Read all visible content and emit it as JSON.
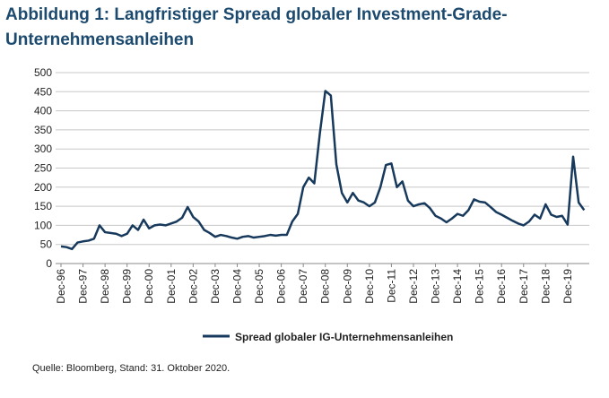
{
  "chart_data": {
    "type": "line",
    "title": "Abbildung 1: Langfristiger Spread globaler Investment-Grade-Unternehmensanleihen",
    "source": "Quelle: Bloomberg, Stand: 31. Oktober 2020.",
    "categories": [
      "Dec-96",
      null,
      null,
      null,
      "Dec-97",
      null,
      null,
      null,
      "Dec-98",
      null,
      null,
      null,
      "Dec-99",
      null,
      null,
      null,
      "Dec-00",
      null,
      null,
      null,
      "Dec-01",
      null,
      null,
      null,
      "Dec-02",
      null,
      null,
      null,
      "Dec-03",
      null,
      null,
      null,
      "Dec-04",
      null,
      null,
      null,
      "Dec-05",
      null,
      null,
      null,
      "Dec-06",
      null,
      null,
      null,
      "Dec-07",
      null,
      null,
      null,
      "Dec-08",
      null,
      null,
      null,
      "Dec-09",
      null,
      null,
      null,
      "Dec-10",
      null,
      null,
      null,
      "Dec-11",
      null,
      null,
      null,
      "Dec-12",
      null,
      null,
      null,
      "Dec-13",
      null,
      null,
      null,
      "Dec-14",
      null,
      null,
      null,
      "Dec-15",
      null,
      null,
      null,
      "Dec-16",
      null,
      null,
      null,
      "Dec-17",
      null,
      null,
      null,
      "Dec-18",
      null,
      null,
      null,
      "Dec-19",
      null,
      null,
      null
    ],
    "series": [
      {
        "name": "Spread globaler IG-Unternehmensanleihen",
        "color": "#17395c",
        "values": [
          45,
          43,
          38,
          55,
          58,
          60,
          65,
          100,
          82,
          80,
          78,
          72,
          78,
          100,
          88,
          115,
          92,
          100,
          102,
          100,
          105,
          110,
          120,
          148,
          122,
          110,
          88,
          80,
          70,
          75,
          72,
          68,
          65,
          70,
          72,
          68,
          70,
          72,
          75,
          73,
          75,
          75,
          110,
          130,
          200,
          225,
          210,
          340,
          452,
          440,
          260,
          185,
          160,
          185,
          165,
          160,
          150,
          160,
          200,
          258,
          262,
          200,
          215,
          165,
          150,
          155,
          158,
          145,
          125,
          118,
          108,
          118,
          130,
          125,
          140,
          168,
          162,
          160,
          148,
          135,
          128,
          120,
          112,
          105,
          100,
          110,
          128,
          118,
          155,
          128,
          122,
          125,
          102,
          280,
          160,
          140
        ]
      }
    ],
    "ylim": [
      0,
      500
    ],
    "yticks": [
      0,
      50,
      100,
      150,
      200,
      250,
      300,
      350,
      400,
      450,
      500
    ],
    "grid": true,
    "legend": "bottom"
  }
}
